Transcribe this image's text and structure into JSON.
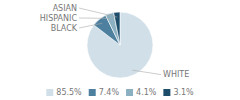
{
  "chart_data": {
    "type": "pie",
    "categories": [
      "WHITE",
      "BLACK",
      "HISPANIC",
      "ASIAN"
    ],
    "values": [
      85.5,
      7.4,
      4.1,
      3.1
    ],
    "value_labels": [
      "85.5%",
      "7.4%",
      "4.1%",
      "3.1%"
    ],
    "colors": [
      "#d0dfe8",
      "#4d7f9e",
      "#8ab0c2",
      "#1e4d6b"
    ],
    "legend": "bottom"
  }
}
